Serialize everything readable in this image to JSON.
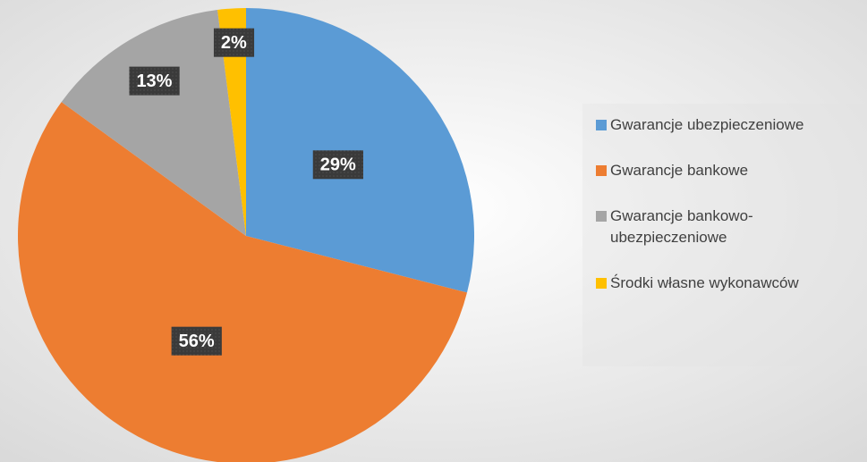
{
  "chart_data": {
    "type": "pie",
    "categories": [
      "Gwarancje ubezpieczeniowe",
      "Gwarancje bankowe",
      "Gwarancje bankowo-ubezpieczeniowe",
      "Środki własne wykonawców"
    ],
    "values": [
      29,
      56,
      13,
      2
    ],
    "value_labels": [
      "29%",
      "56%",
      "13%",
      "2%"
    ],
    "colors": [
      "#5b9bd5",
      "#ed7d31",
      "#a5a5a5",
      "#ffc000"
    ],
    "legend": "right"
  }
}
